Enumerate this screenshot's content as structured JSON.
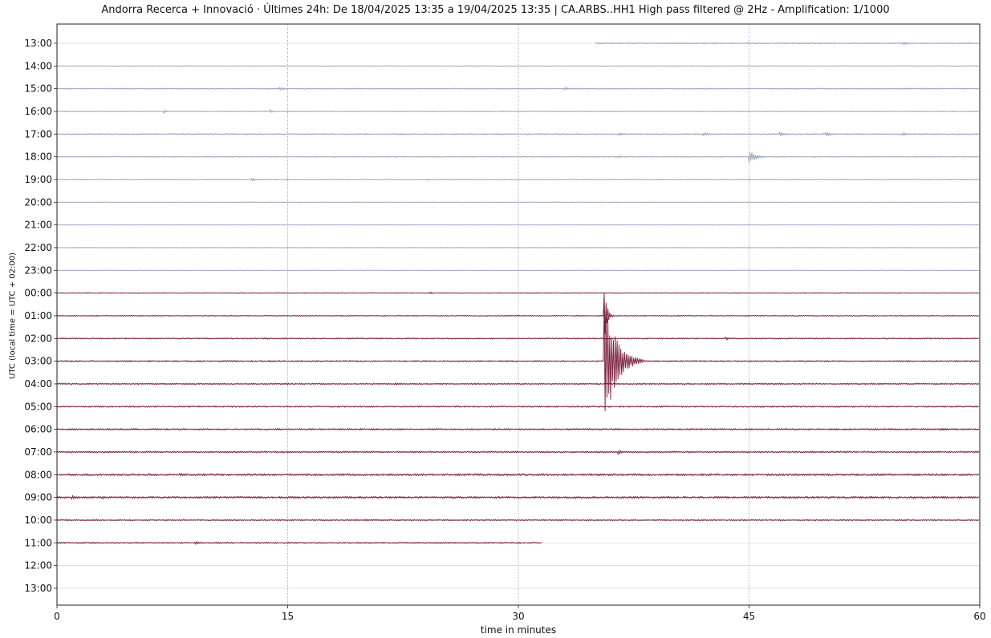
{
  "chart_data": {
    "type": "line",
    "title": "Andorra Recerca + Innovació · Últimes 24h: De 18/04/2025 13:35 a 19/04/2025 13:35  |  CA.ARBS..HH1 High pass filtered @ 2Hz - Amplification: 1/1000",
    "xlabel": "time in minutes",
    "ylabel": "UTC (local time = UTC + 02:00)",
    "xlim": [
      0,
      60
    ],
    "xticks": [
      0,
      15,
      30,
      45,
      60
    ],
    "x_gridlines": [
      15,
      30,
      45
    ],
    "grid": true,
    "ytick_labels": [
      "13:00",
      "14:00",
      "15:00",
      "16:00",
      "17:00",
      "18:00",
      "19:00",
      "20:00",
      "21:00",
      "22:00",
      "23:00",
      "00:00",
      "01:00",
      "02:00",
      "03:00",
      "04:00",
      "05:00",
      "06:00",
      "07:00",
      "08:00",
      "09:00",
      "10:00",
      "11:00",
      "12:00",
      "13:00"
    ],
    "trace_colors": {
      "day_18": "#9aa4bd",
      "day_19": "#7a1e3e"
    },
    "traces": [
      {
        "label": "13:00",
        "day": 18,
        "start": 35.0,
        "end": 60,
        "noise": 0.6,
        "events": [
          {
            "t": 55,
            "amp": 2,
            "dur": 2
          }
        ]
      },
      {
        "label": "14:00",
        "day": 18,
        "start": 0,
        "end": 60,
        "noise": 0.3,
        "events": []
      },
      {
        "label": "15:00",
        "day": 18,
        "start": 0,
        "end": 60,
        "noise": 0.5,
        "events": [
          {
            "t": 14.5,
            "amp": 2.5,
            "dur": 1.5
          },
          {
            "t": 33,
            "amp": 2,
            "dur": 1.5
          }
        ]
      },
      {
        "label": "16:00",
        "day": 18,
        "start": 0,
        "end": 60,
        "noise": 0.4,
        "events": [
          {
            "t": 7,
            "amp": 3,
            "dur": 0.5
          },
          {
            "t": 13.9,
            "amp": 2.5,
            "dur": 0.5
          }
        ]
      },
      {
        "label": "17:00",
        "day": 18,
        "start": 0,
        "end": 60,
        "noise": 0.6,
        "events": [
          {
            "t": 36.5,
            "amp": 2,
            "dur": 2
          },
          {
            "t": 42,
            "amp": 2.5,
            "dur": 2
          },
          {
            "t": 47,
            "amp": 3,
            "dur": 1.5
          },
          {
            "t": 50,
            "amp": 3,
            "dur": 1.5
          },
          {
            "t": 55,
            "amp": 2,
            "dur": 1.5
          }
        ]
      },
      {
        "label": "18:00",
        "day": 18,
        "start": 0,
        "end": 60,
        "noise": 0.5,
        "events": [
          {
            "t": 45,
            "amp": 9,
            "dur": 1.5
          },
          {
            "t": 36.5,
            "amp": 1.5,
            "dur": 1
          }
        ]
      },
      {
        "label": "19:00",
        "day": 18,
        "start": 0,
        "end": 60,
        "noise": 0.4,
        "events": [
          {
            "t": 12.7,
            "amp": 2,
            "dur": 1
          }
        ]
      },
      {
        "label": "20:00",
        "day": 18,
        "start": 0,
        "end": 60,
        "noise": 0.3,
        "events": []
      },
      {
        "label": "21:00",
        "day": 18,
        "start": 0,
        "end": 60,
        "noise": 0.3,
        "events": []
      },
      {
        "label": "22:00",
        "day": 18,
        "start": 0,
        "end": 60,
        "noise": 0.3,
        "events": []
      },
      {
        "label": "23:00",
        "day": 18,
        "start": 0,
        "end": 60,
        "noise": 0.3,
        "events": []
      },
      {
        "label": "00:00",
        "day": 19,
        "start": 0,
        "end": 60,
        "noise": 0.4,
        "events": [
          {
            "t": 24.3,
            "amp": 2,
            "dur": 0.3
          }
        ]
      },
      {
        "label": "01:00",
        "day": 19,
        "start": 0,
        "end": 60,
        "noise": 0.5,
        "events": [
          {
            "t": 35.6,
            "amp": 33,
            "dur": 0.6
          }
        ]
      },
      {
        "label": "02:00",
        "day": 19,
        "start": 0,
        "end": 60,
        "noise": 0.6,
        "events": [
          {
            "t": 43.5,
            "amp": 3,
            "dur": 0.5
          }
        ]
      },
      {
        "label": "03:00",
        "day": 19,
        "start": 0,
        "end": 60,
        "noise": 0.7,
        "events": [
          {
            "t": 35.6,
            "amp": 85,
            "dur": 2.5
          }
        ]
      },
      {
        "label": "04:00",
        "day": 19,
        "start": 0,
        "end": 60,
        "noise": 0.7,
        "events": [
          {
            "t": 22,
            "amp": 1.5,
            "dur": 2
          }
        ]
      },
      {
        "label": "05:00",
        "day": 19,
        "start": 0,
        "end": 60,
        "noise": 0.7,
        "events": []
      },
      {
        "label": "06:00",
        "day": 19,
        "start": 0,
        "end": 60,
        "noise": 0.8,
        "events": [
          {
            "t": 57.5,
            "amp": 2,
            "dur": 2
          }
        ]
      },
      {
        "label": "07:00",
        "day": 19,
        "start": 0,
        "end": 60,
        "noise": 0.8,
        "events": [
          {
            "t": 36.5,
            "amp": 3,
            "dur": 1
          }
        ]
      },
      {
        "label": "08:00",
        "day": 19,
        "start": 0,
        "end": 60,
        "noise": 1.0,
        "events": [
          {
            "t": 8,
            "amp": 2,
            "dur": 2
          }
        ]
      },
      {
        "label": "09:00",
        "day": 19,
        "start": 0,
        "end": 60,
        "noise": 1.0,
        "events": [
          {
            "t": 1,
            "amp": 2.5,
            "dur": 1.5
          },
          {
            "t": 3,
            "amp": 2,
            "dur": 1
          },
          {
            "t": 57,
            "amp": 2,
            "dur": 1.5
          }
        ]
      },
      {
        "label": "10:00",
        "day": 19,
        "start": 0,
        "end": 60,
        "noise": 0.7,
        "events": [
          {
            "t": 20,
            "amp": 1.5,
            "dur": 2
          }
        ]
      },
      {
        "label": "11:00",
        "day": 19,
        "start": 0,
        "end": 31.5,
        "noise": 0.7,
        "events": [
          {
            "t": 9,
            "amp": 2,
            "dur": 2
          }
        ]
      }
    ]
  }
}
